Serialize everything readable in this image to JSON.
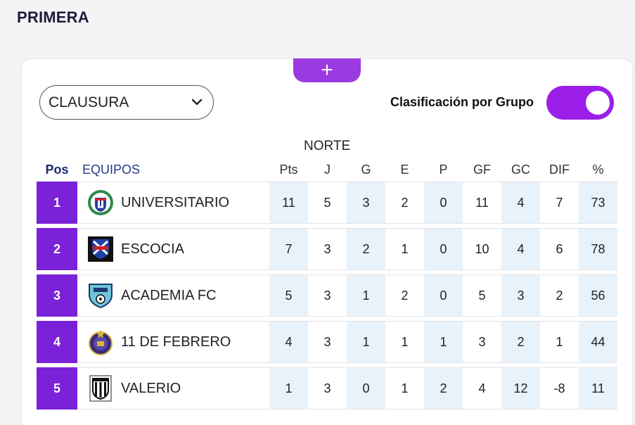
{
  "page": {
    "title": "PRIMERA"
  },
  "add_button": {
    "label": "+"
  },
  "tournament_select": {
    "value": "CLAUSURA"
  },
  "group_toggle": {
    "label": "Clasificación por Grupo",
    "on": true
  },
  "group": {
    "name": "NORTE"
  },
  "columns": {
    "pos": "Pos",
    "team": "EQUIPOS",
    "stats": [
      "Pts",
      "J",
      "G",
      "E",
      "P",
      "GF",
      "GC",
      "DIF",
      "%"
    ]
  },
  "rows": [
    {
      "pos": "1",
      "team": "UNIVERSITARIO",
      "logo_icon": "universitario-crest-icon",
      "stats": [
        "11",
        "5",
        "3",
        "2",
        "0",
        "11",
        "4",
        "7",
        "73"
      ]
    },
    {
      "pos": "2",
      "team": "ESCOCIA",
      "logo_icon": "escocia-crest-icon",
      "stats": [
        "7",
        "3",
        "2",
        "1",
        "0",
        "10",
        "4",
        "6",
        "78"
      ]
    },
    {
      "pos": "3",
      "team": "ACADEMIA FC",
      "logo_icon": "academia-fc-crest-icon",
      "stats": [
        "5",
        "3",
        "1",
        "2",
        "0",
        "5",
        "3",
        "2",
        "56"
      ]
    },
    {
      "pos": "4",
      "team": "11 DE FEBRERO",
      "logo_icon": "11-de-febrero-crest-icon",
      "stats": [
        "4",
        "3",
        "1",
        "1",
        "1",
        "3",
        "2",
        "1",
        "44"
      ]
    },
    {
      "pos": "5",
      "team": "VALERIO",
      "logo_icon": "valerio-crest-icon",
      "stats": [
        "1",
        "3",
        "0",
        "1",
        "2",
        "4",
        "12",
        "-8",
        "11"
      ]
    }
  ],
  "colors": {
    "accent": "#9b1fe8",
    "pos_cell": "#7a22d8",
    "shade": "#e8f2fa"
  }
}
